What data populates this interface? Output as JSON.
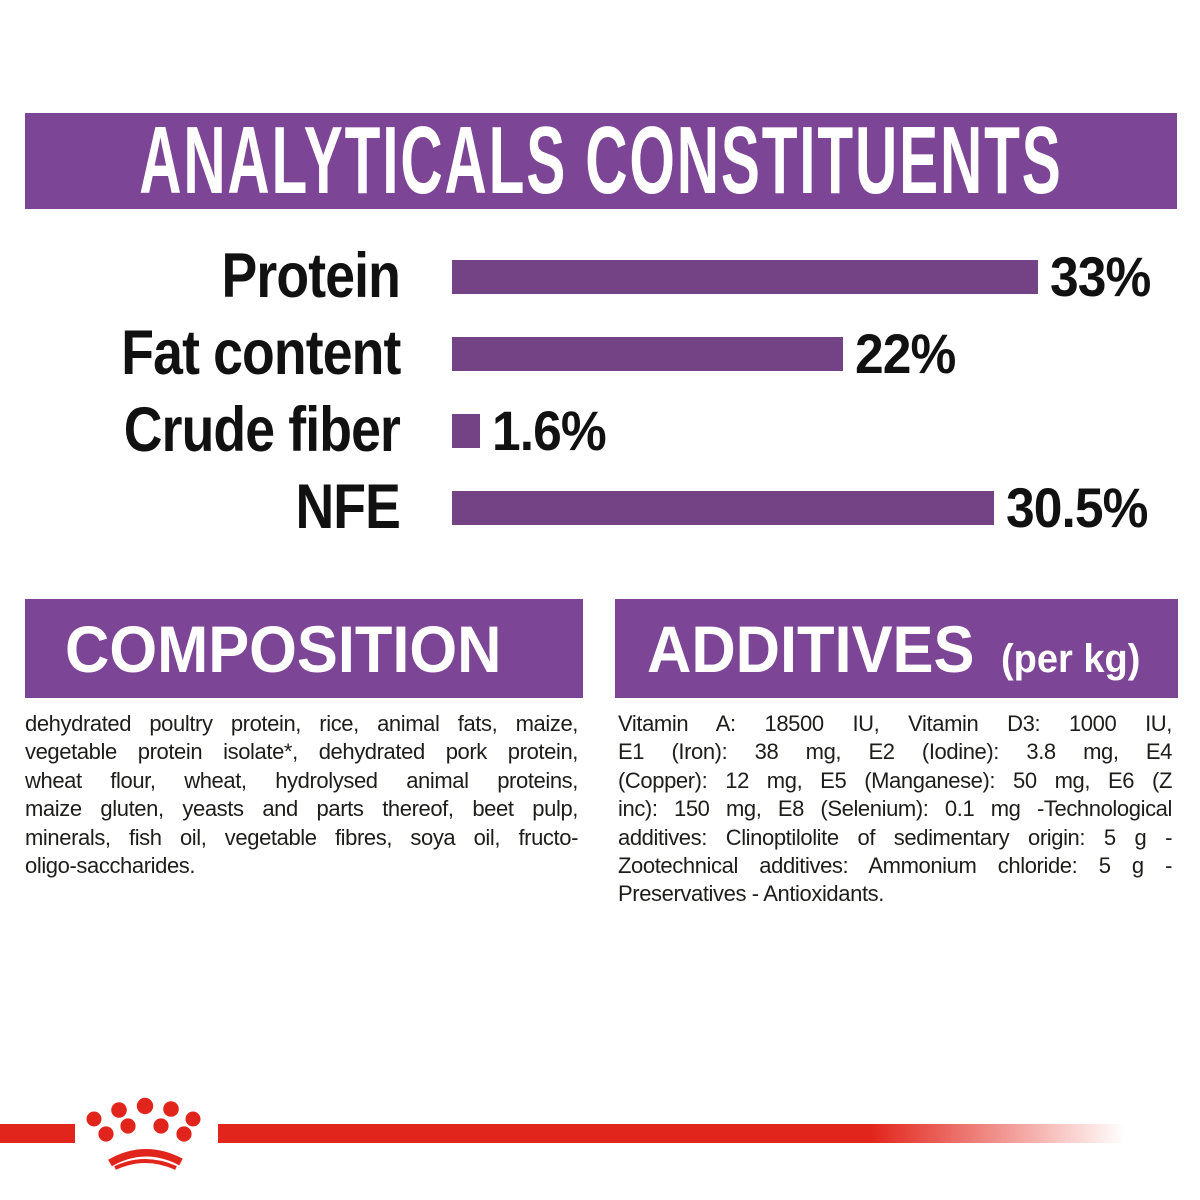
{
  "colors": {
    "purple_banner": "#7C4596",
    "purple_bar": "#744386",
    "brand_red": "#E2251C",
    "text_black": "#1D1D1B",
    "banner_text": "#FFFFFF"
  },
  "header": {
    "title": "ANALYTICALS CONSTITUENTS"
  },
  "chart_data": {
    "type": "bar",
    "orientation": "horizontal",
    "title": "ANALYTICALS CONSTITUENTS",
    "categories": [
      "Protein",
      "Fat content",
      "Crude fiber",
      "NFE"
    ],
    "values": [
      33,
      22,
      1.6,
      30.5
    ],
    "value_labels": [
      "33%",
      "22%",
      "1.6%",
      "30.5%"
    ],
    "unit": "%",
    "xlim": [
      0,
      41
    ],
    "grid": false,
    "legend": false
  },
  "composition": {
    "heading": "COMPOSITION",
    "lines": [
      "dehydrated poultry protein, rice, animal fats, maize,",
      "vegetable protein isolate*, dehydrated pork protein,",
      "wheat flour, wheat, hydrolysed animal proteins,",
      "maize gluten, yeasts and parts thereof, beet pulp,",
      "minerals, fish oil, vegetable fibres, soya oil, fructo-",
      "oligo-saccharides."
    ]
  },
  "additives": {
    "heading": "ADDITIVES",
    "heading_suffix": "(per kg)",
    "lines": [
      "Vitamin A: 18500 IU, Vitamin D3: 1000 IU,",
      "E1 (Iron): 38 mg, E2 (Iodine): 3.8 mg, E4",
      "(Copper): 12 mg, E5 (Manganese): 50 mg, E6 (Z",
      "inc): 150 mg, E8 (Selenium): 0.1 mg -Technological",
      "additives: Clinoptilolite of sedimentary origin: 5 g -",
      "Zootechnical additives: Ammonium chloride: 5 g -",
      "Preservatives - Antioxidants."
    ]
  },
  "footer": {
    "logo": "royal-canin-crown-logo"
  }
}
